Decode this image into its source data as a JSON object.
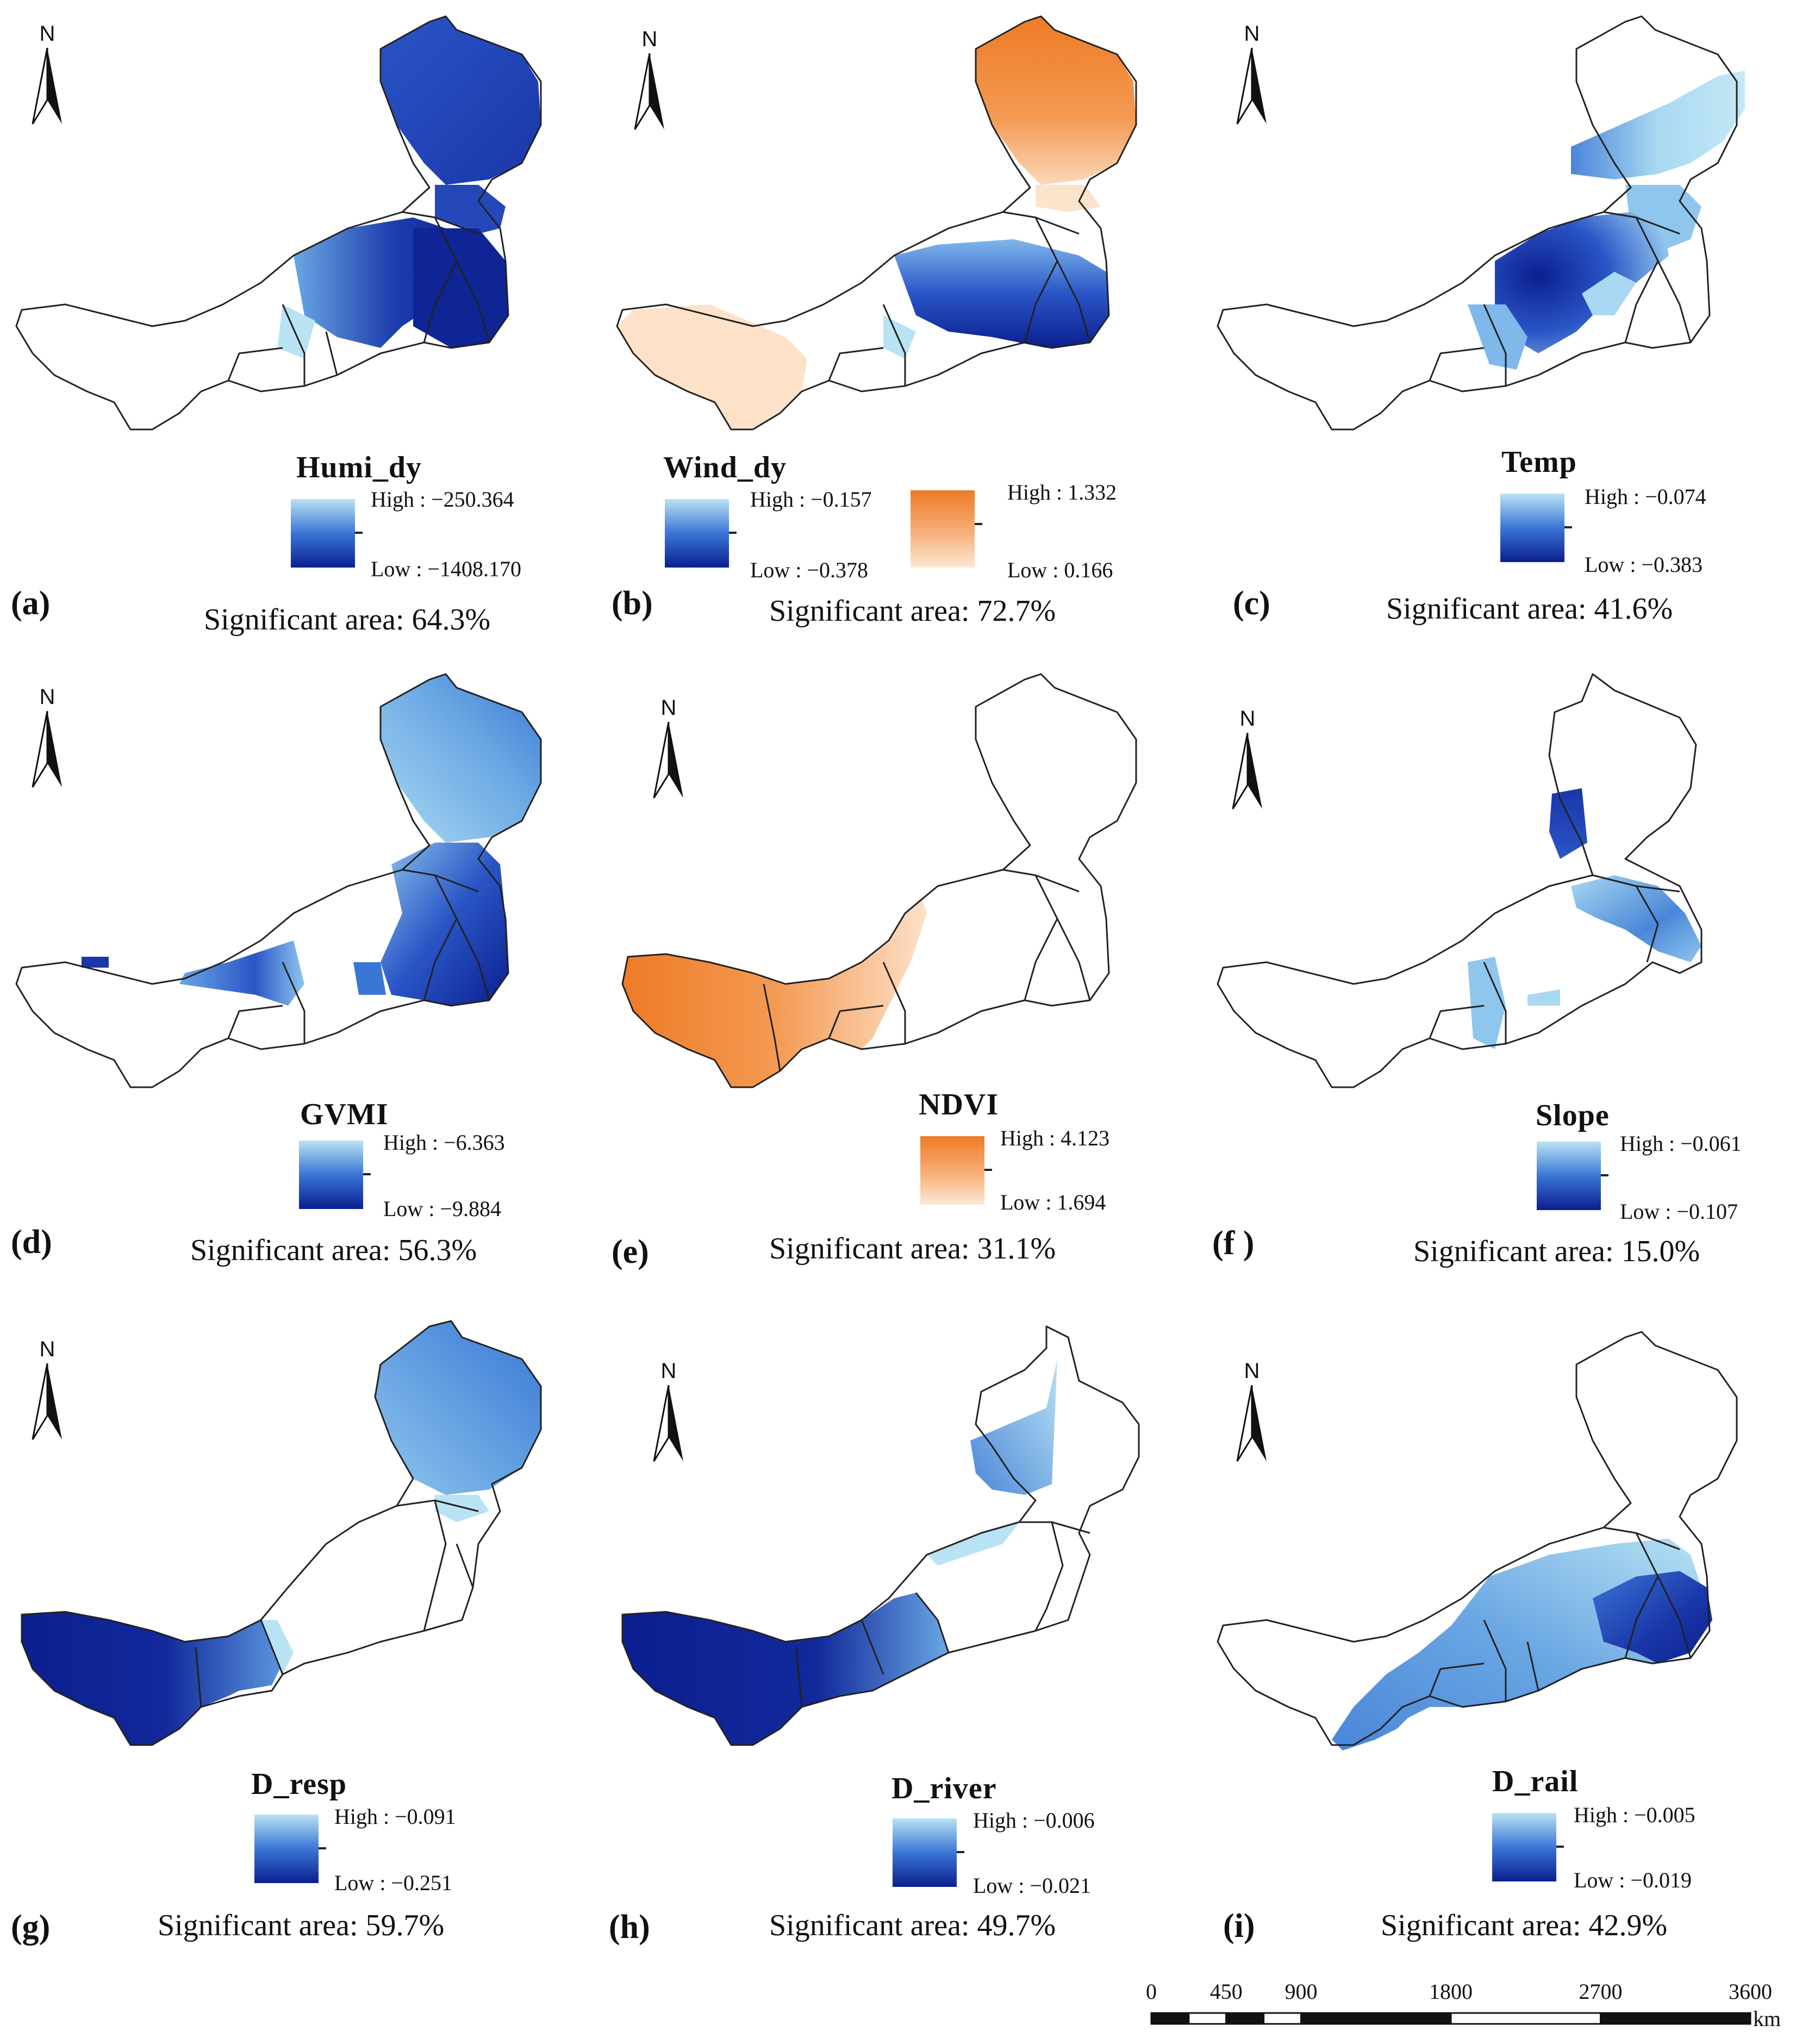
{
  "panels": [
    {
      "label": "(a)",
      "variable": "Humi_dy",
      "significant_area": "Significant area: 64.3%",
      "north": "N",
      "legends": [
        {
          "high": "High : −250.364",
          "low": "Low : −1408.170",
          "high_color": "#b9e3f3",
          "low_color": "#0b1f8f"
        }
      ]
    },
    {
      "label": "(b)",
      "variable": "Wind_dy",
      "significant_area": "Significant area: 72.7%",
      "north": "N",
      "legends": [
        {
          "high": "High : −0.157",
          "low": "Low : −0.378",
          "high_color": "#b9e3f3",
          "low_color": "#0b1f8f"
        },
        {
          "high": "High : 1.332",
          "low": "Low : 0.166",
          "high_color": "#ef7e2a",
          "low_color": "#fde7d2"
        }
      ]
    },
    {
      "label": "(c)",
      "variable": "Temp",
      "significant_area": "Significant area: 41.6%",
      "north": "N",
      "legends": [
        {
          "high": "High : −0.074",
          "low": "Low : −0.383",
          "high_color": "#b9e3f3",
          "low_color": "#0b1f8f"
        }
      ]
    },
    {
      "label": "(d)",
      "variable": "GVMI",
      "significant_area": "Significant area: 56.3%",
      "north": "N",
      "legends": [
        {
          "high": "High : −6.363",
          "low": "Low : −9.884",
          "high_color": "#b9e3f3",
          "low_color": "#0b1f8f"
        }
      ]
    },
    {
      "label": "(e)",
      "variable": "NDVI",
      "significant_area": "Significant area: 31.1%",
      "north": "N",
      "legends": [
        {
          "high": "High : 4.123",
          "low": "Low : 1.694",
          "high_color": "#ef7e2a",
          "low_color": "#fde7d2"
        }
      ]
    },
    {
      "label": "(f )",
      "variable": "Slope",
      "significant_area": "Significant area: 15.0%",
      "north": "N",
      "legends": [
        {
          "high": "High : −0.061",
          "low": "Low : −0.107",
          "high_color": "#b9e3f3",
          "low_color": "#0b1f8f"
        }
      ]
    },
    {
      "label": "(g)",
      "variable": "D_resp",
      "significant_area": "Significant area: 59.7%",
      "north": "N",
      "legends": [
        {
          "high": "High : −0.091",
          "low": "Low : −0.251",
          "high_color": "#b9e3f3",
          "low_color": "#0b1f8f"
        }
      ]
    },
    {
      "label": "(h)",
      "variable": "D_river",
      "significant_area": "Significant area: 49.7%",
      "north": "N",
      "legends": [
        {
          "high": "High : −0.006",
          "low": "Low : −0.021",
          "high_color": "#b9e3f3",
          "low_color": "#0b1f8f"
        }
      ]
    },
    {
      "label": "(i)",
      "variable": "D_rail",
      "significant_area": "Significant area: 42.9%",
      "north": "N",
      "legends": [
        {
          "high": "High : −0.005",
          "low": "Low : −0.019",
          "high_color": "#b9e3f3",
          "low_color": "#0b1f8f"
        }
      ]
    }
  ],
  "scale_bar": {
    "ticks": [
      "0",
      "450",
      "900",
      "1800",
      "2700",
      "3600"
    ],
    "tick_values": [
      0,
      450,
      900,
      1800,
      2700,
      3600
    ],
    "unit": "km"
  },
  "colors": {
    "outline": "#222222",
    "blue_high": "#b9e3f3",
    "blue_low": "#0b1f8f",
    "orange_high": "#ef7e2a",
    "orange_low": "#fde7d2"
  }
}
